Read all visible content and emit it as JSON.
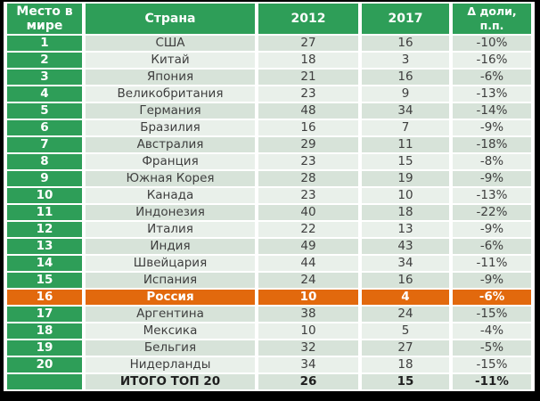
{
  "table": {
    "title_semantic": "world-rank-table",
    "columns": [
      "Место в мире",
      "Страна",
      "2012",
      "2017",
      "Δ доли, п.п."
    ],
    "rows": [
      {
        "rank": "1",
        "country": "США",
        "y2012": "27",
        "y2017": "16",
        "delta": "-10%"
      },
      {
        "rank": "2",
        "country": "Китай",
        "y2012": "18",
        "y2017": "3",
        "delta": "-16%"
      },
      {
        "rank": "3",
        "country": "Япония",
        "y2012": "21",
        "y2017": "16",
        "delta": "-6%"
      },
      {
        "rank": "4",
        "country": "Великобритания",
        "y2012": "23",
        "y2017": "9",
        "delta": "-13%"
      },
      {
        "rank": "5",
        "country": "Германия",
        "y2012": "48",
        "y2017": "34",
        "delta": "-14%"
      },
      {
        "rank": "6",
        "country": "Бразилия",
        "y2012": "16",
        "y2017": "7",
        "delta": "-9%"
      },
      {
        "rank": "7",
        "country": "Австралия",
        "y2012": "29",
        "y2017": "11",
        "delta": "-18%"
      },
      {
        "rank": "8",
        "country": "Франция",
        "y2012": "23",
        "y2017": "15",
        "delta": "-8%"
      },
      {
        "rank": "9",
        "country": "Южная Корея",
        "y2012": "28",
        "y2017": "19",
        "delta": "-9%"
      },
      {
        "rank": "10",
        "country": "Канада",
        "y2012": "23",
        "y2017": "10",
        "delta": "-13%"
      },
      {
        "rank": "11",
        "country": "Индонезия",
        "y2012": "40",
        "y2017": "18",
        "delta": "-22%"
      },
      {
        "rank": "12",
        "country": "Италия",
        "y2012": "22",
        "y2017": "13",
        "delta": "-9%"
      },
      {
        "rank": "13",
        "country": "Индия",
        "y2012": "49",
        "y2017": "43",
        "delta": "-6%"
      },
      {
        "rank": "14",
        "country": "Швейцария",
        "y2012": "44",
        "y2017": "34",
        "delta": "-11%"
      },
      {
        "rank": "15",
        "country": "Испания",
        "y2012": "24",
        "y2017": "16",
        "delta": "-9%"
      },
      {
        "rank": "16",
        "country": "Россия",
        "y2012": "10",
        "y2017": "4",
        "delta": "-6%",
        "highlight": true
      },
      {
        "rank": "17",
        "country": "Аргентина",
        "y2012": "38",
        "y2017": "24",
        "delta": "-15%"
      },
      {
        "rank": "18",
        "country": "Мексика",
        "y2012": "10",
        "y2017": "5",
        "delta": "-4%"
      },
      {
        "rank": "19",
        "country": "Бельгия",
        "y2012": "32",
        "y2017": "27",
        "delta": "-5%"
      },
      {
        "rank": "20",
        "country": "Нидерланды",
        "y2012": "34",
        "y2017": "18",
        "delta": "-15%"
      }
    ],
    "total_row": {
      "rank": "",
      "country": "ИТОГО ТОП 20",
      "y2012": "26",
      "y2017": "15",
      "delta": "-11%"
    },
    "colors": {
      "header_green": "#2E9E58",
      "highlight_orange": "#E2690D",
      "row_dark": "#D7E3D9",
      "row_light": "#E9F0EA",
      "grid_white": "#FFFFFF",
      "background_black": "#000000"
    }
  }
}
